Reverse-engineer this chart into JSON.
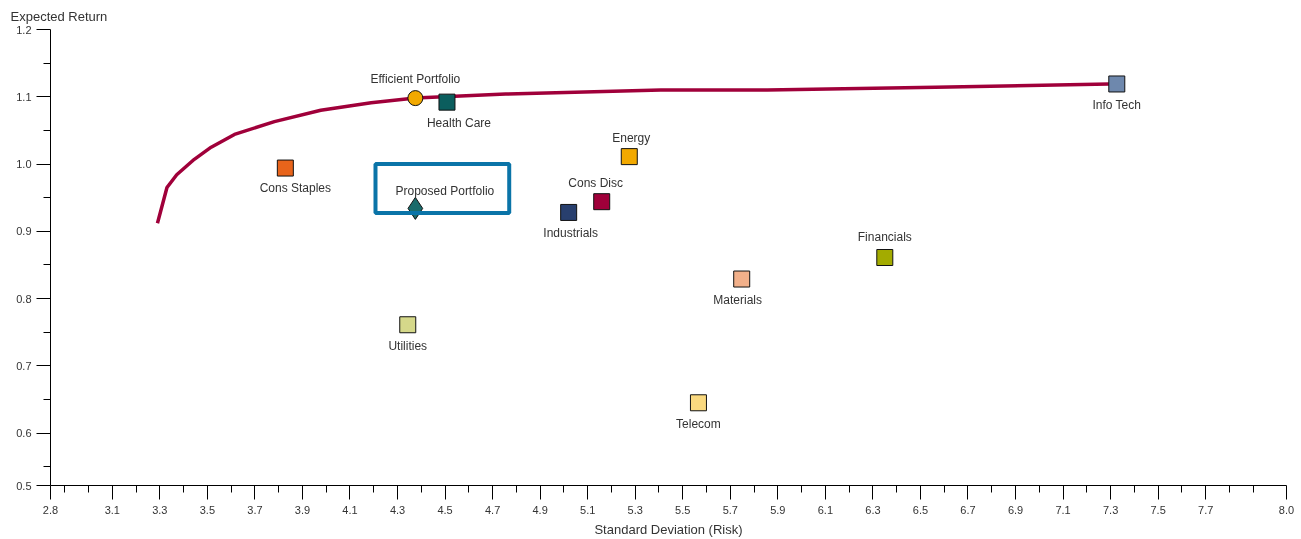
{
  "chart_data": {
    "type": "scatter",
    "xlabel": "Standard Deviation (Risk)",
    "ylabel": "Expected Return",
    "xlim": [
      2.8,
      8.0
    ],
    "ylim": [
      0.522,
      1.2
    ],
    "xticks": [
      {
        "value": 2.8,
        "label": "2.8"
      },
      {
        "value": 2.86,
        "label": null
      },
      {
        "value": 2.96,
        "label": null
      },
      {
        "value": 3.06,
        "label": "3.1"
      },
      {
        "value": 3.16,
        "label": null
      },
      {
        "value": 3.26,
        "label": "3.3"
      },
      {
        "value": 3.36,
        "label": null
      },
      {
        "value": 3.46,
        "label": "3.5"
      },
      {
        "value": 3.56,
        "label": null
      },
      {
        "value": 3.66,
        "label": "3.7"
      },
      {
        "value": 3.76,
        "label": null
      },
      {
        "value": 3.86,
        "label": "3.9"
      },
      {
        "value": 3.96,
        "label": null
      },
      {
        "value": 4.06,
        "label": "4.1"
      },
      {
        "value": 4.16,
        "label": null
      },
      {
        "value": 4.26,
        "label": "4.3"
      },
      {
        "value": 4.36,
        "label": null
      },
      {
        "value": 4.46,
        "label": "4.5"
      },
      {
        "value": 4.56,
        "label": null
      },
      {
        "value": 4.66,
        "label": "4.7"
      },
      {
        "value": 4.76,
        "label": null
      },
      {
        "value": 4.86,
        "label": "4.9"
      },
      {
        "value": 4.96,
        "label": null
      },
      {
        "value": 5.06,
        "label": "5.1"
      },
      {
        "value": 5.16,
        "label": null
      },
      {
        "value": 5.26,
        "label": "5.3"
      },
      {
        "value": 5.36,
        "label": null
      },
      {
        "value": 5.46,
        "label": "5.5"
      },
      {
        "value": 5.56,
        "label": null
      },
      {
        "value": 5.66,
        "label": "5.7"
      },
      {
        "value": 5.76,
        "label": null
      },
      {
        "value": 5.86,
        "label": "5.9"
      },
      {
        "value": 5.96,
        "label": null
      },
      {
        "value": 6.06,
        "label": "6.1"
      },
      {
        "value": 6.16,
        "label": null
      },
      {
        "value": 6.26,
        "label": "6.3"
      },
      {
        "value": 6.36,
        "label": null
      },
      {
        "value": 6.46,
        "label": "6.5"
      },
      {
        "value": 6.56,
        "label": null
      },
      {
        "value": 6.66,
        "label": "6.7"
      },
      {
        "value": 6.76,
        "label": null
      },
      {
        "value": 6.86,
        "label": "6.9"
      },
      {
        "value": 6.96,
        "label": null
      },
      {
        "value": 7.06,
        "label": "7.1"
      },
      {
        "value": 7.16,
        "label": null
      },
      {
        "value": 7.26,
        "label": "7.3"
      },
      {
        "value": 7.36,
        "label": null
      },
      {
        "value": 7.46,
        "label": "7.5"
      },
      {
        "value": 7.56,
        "label": null
      },
      {
        "value": 7.66,
        "label": "7.7"
      },
      {
        "value": 7.76,
        "label": null
      },
      {
        "value": 7.86,
        "label": null
      },
      {
        "value": 8.0,
        "label": "8.0"
      }
    ],
    "yticks": [
      {
        "value": 0.522,
        "label": "0.5"
      },
      {
        "value": 0.55,
        "label": null
      },
      0.6,
      {
        "value": 0.65,
        "label": null
      },
      0.7,
      {
        "value": 0.75,
        "label": null
      },
      0.8,
      {
        "value": 0.85,
        "label": null
      },
      0.9,
      {
        "value": 0.95,
        "label": null
      },
      {
        "value": 1.0,
        "label": "1.0"
      },
      {
        "value": 1.05,
        "label": null
      },
      1.1,
      {
        "value": 1.15,
        "label": null
      },
      1.2
    ],
    "grid": false,
    "legend": false,
    "series": [
      {
        "type": "line",
        "color": "#a0003a",
        "line_style": "solid",
        "marker": "none",
        "x": [
          3.25,
          3.29,
          3.331,
          3.405,
          3.476,
          3.574,
          3.742,
          3.937,
          4.149,
          4.335,
          4.715,
          5.368,
          5.815,
          6.523,
          7.254
        ],
        "values": [
          0.912,
          0.965,
          0.984,
          1.007,
          1.025,
          1.044,
          1.063,
          1.08,
          1.091,
          1.098,
          1.104,
          1.11,
          1.11,
          1.114,
          1.119
        ]
      },
      {
        "name": "Efficient Portfolio",
        "color": "#f2a900",
        "marker": "circle",
        "x": [
          4.335
        ],
        "values": [
          1.098
        ]
      },
      {
        "name": "Health Care",
        "color": "#0b5e5e",
        "marker": "square",
        "x": [
          4.468
        ],
        "values": [
          1.092
        ]
      },
      {
        "name": "Cons Staples",
        "color": "#e8641b",
        "marker": "square",
        "x": [
          3.788
        ],
        "values": [
          0.994
        ]
      },
      {
        "name": "Proposed Portfolio",
        "color": "#1a6b6b",
        "marker": "diamond",
        "x": [
          4.335
        ],
        "values": [
          0.934
        ]
      },
      {
        "name": "Energy",
        "color": "#f2a900",
        "marker": "square",
        "x": [
          5.235
        ],
        "values": [
          1.011
        ]
      },
      {
        "name": "Cons Disc",
        "color": "#a0003a",
        "marker": "square",
        "x": [
          5.119
        ],
        "values": [
          0.944
        ]
      },
      {
        "name": "Industrials",
        "color": "#283f6e",
        "marker": "square",
        "x": [
          4.98
        ],
        "values": [
          0.928
        ]
      },
      {
        "name": "Utilities",
        "color": "#d5d88a",
        "marker": "square",
        "x": [
          4.303
        ],
        "values": [
          0.761
        ]
      },
      {
        "name": "Materials",
        "color": "#f2b08a",
        "marker": "square",
        "x": [
          5.708
        ],
        "values": [
          0.829
        ]
      },
      {
        "name": "Financials",
        "color": "#a3ab00",
        "marker": "square",
        "x": [
          6.31
        ],
        "values": [
          0.861
        ]
      },
      {
        "name": "Telecom",
        "color": "#fad97f",
        "marker": "square",
        "x": [
          5.526
        ],
        "values": [
          0.645
        ]
      },
      {
        "name": "Info Tech",
        "color": "#6e88ad",
        "marker": "square",
        "x": [
          7.286
        ],
        "values": [
          1.119
        ]
      }
    ]
  }
}
